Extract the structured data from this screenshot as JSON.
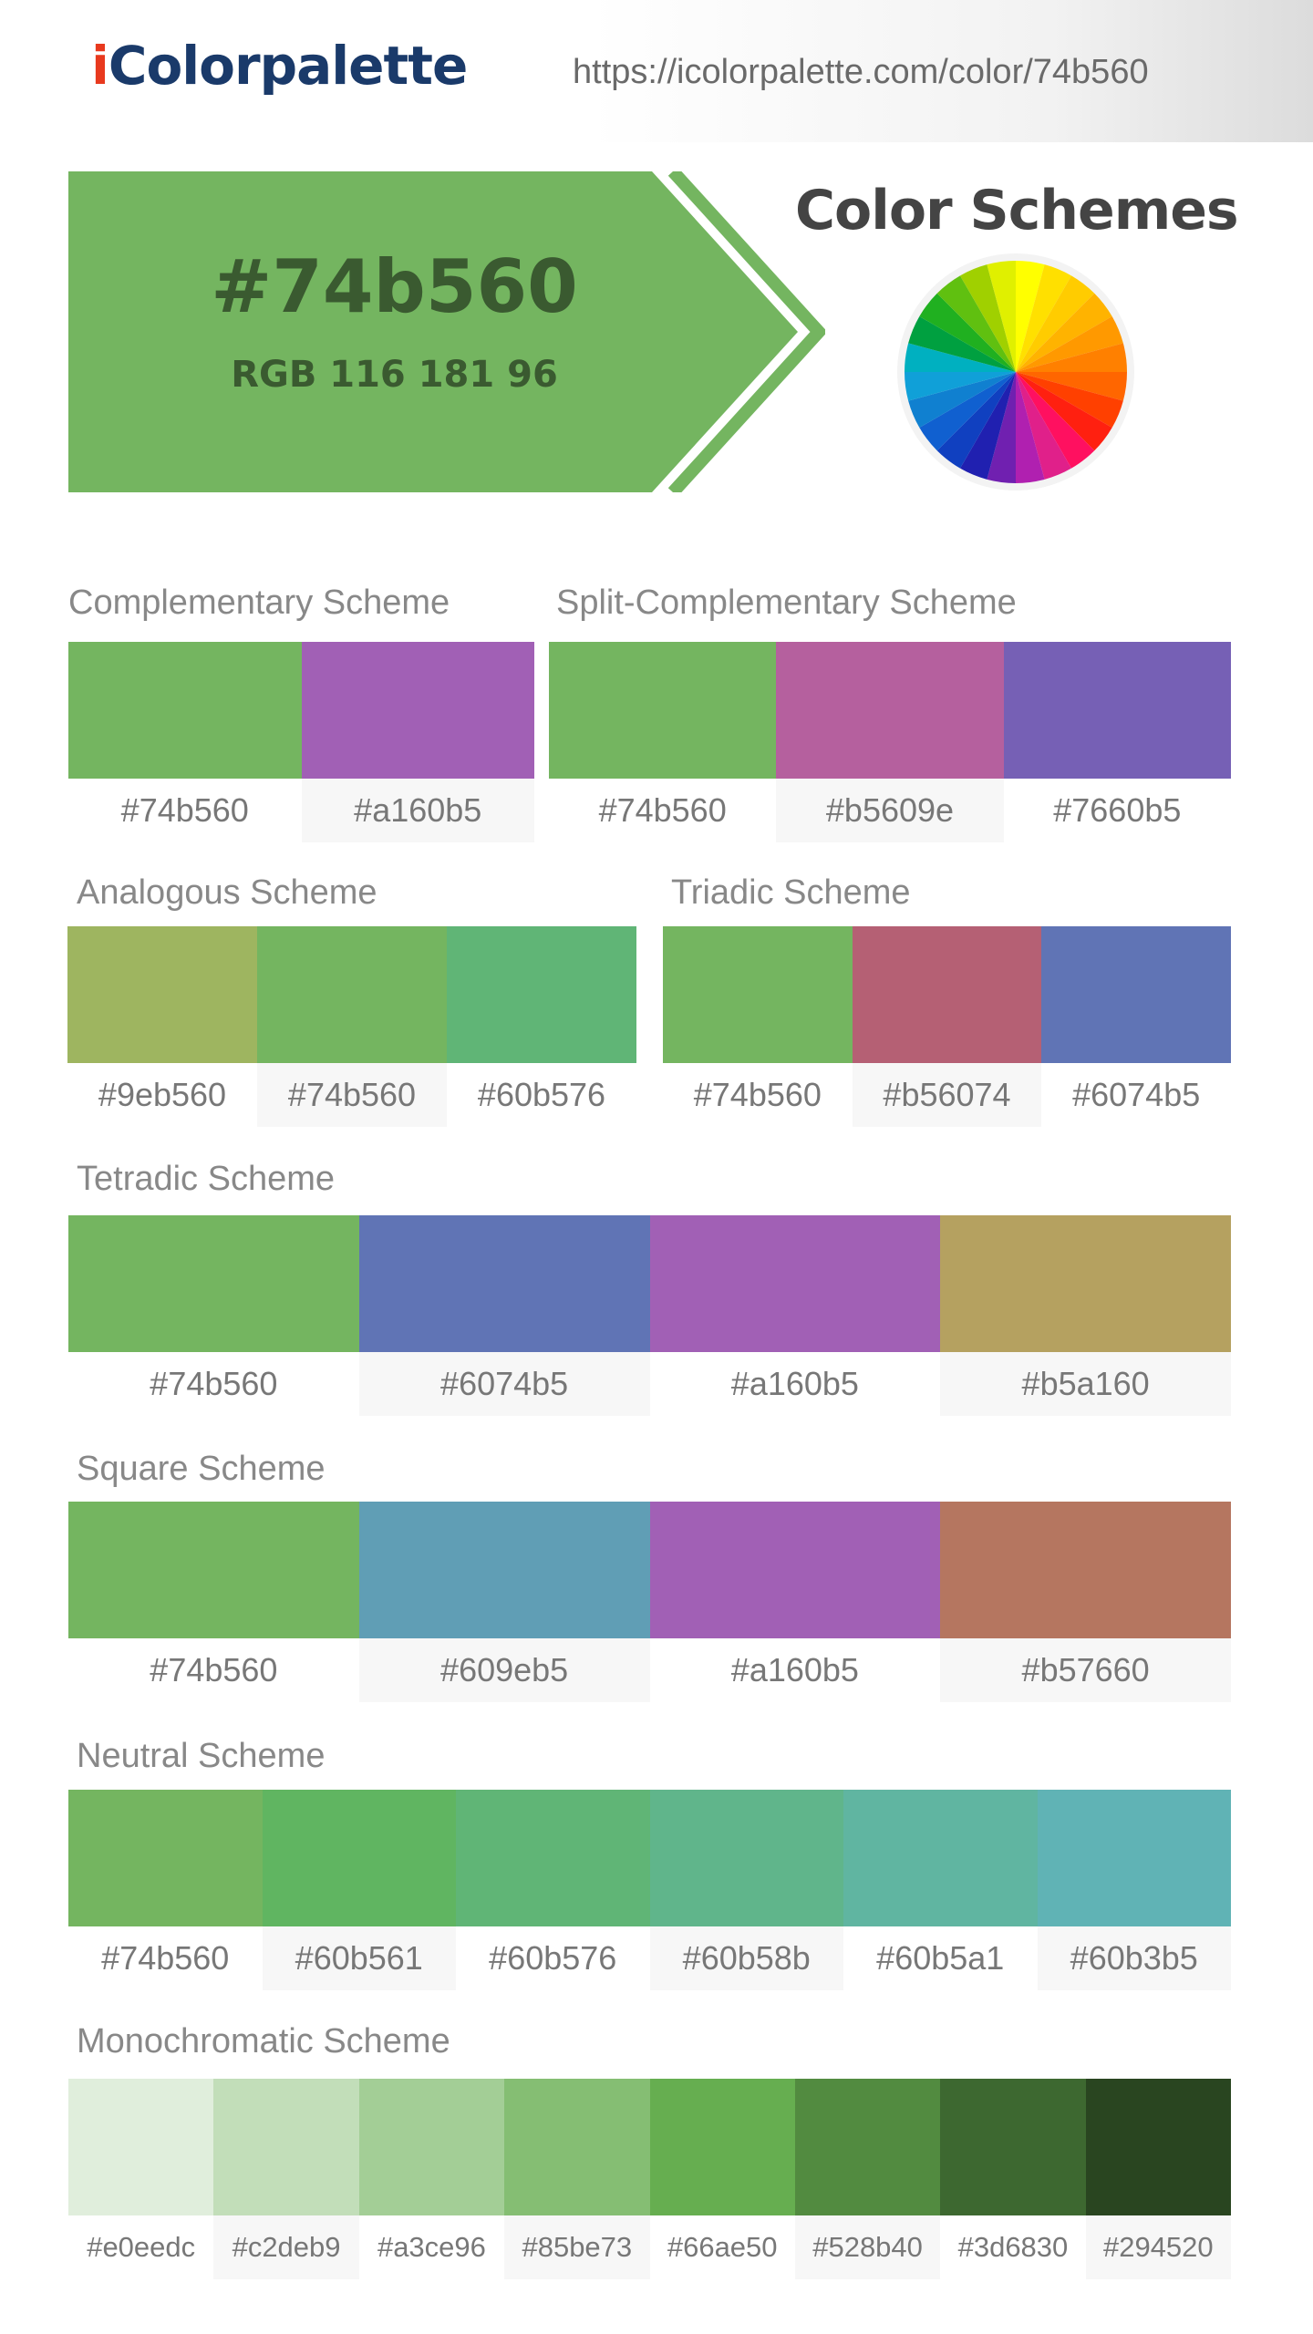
{
  "header": {
    "logo_i": "i",
    "logo_rest": "Colorpalette",
    "url": "https://icolorpalette.com/color/74b560"
  },
  "hero": {
    "hex": "#74b560",
    "rgb": "RGB 116 181 96",
    "color": "#74b560",
    "text_color": "#3a5a30"
  },
  "color_schemes_title": "Color Schemes",
  "schemes": {
    "complementary": {
      "title": "Complementary Scheme",
      "colors": [
        "#74b560",
        "#a160b5"
      ]
    },
    "split_complementary": {
      "title": "Split-Complementary Scheme",
      "colors": [
        "#74b560",
        "#b5609e",
        "#7660b5"
      ]
    },
    "analogous": {
      "title": "Analogous Scheme",
      "colors": [
        "#9eb560",
        "#74b560",
        "#60b576"
      ]
    },
    "triadic": {
      "title": "Triadic Scheme",
      "colors": [
        "#74b560",
        "#b56074",
        "#6074b5"
      ]
    },
    "tetradic": {
      "title": "Tetradic Scheme",
      "colors": [
        "#74b560",
        "#6074b5",
        "#a160b5",
        "#b5a160"
      ]
    },
    "square": {
      "title": "Square Scheme",
      "colors": [
        "#74b560",
        "#609eb5",
        "#a160b5",
        "#b57660"
      ]
    },
    "neutral": {
      "title": "Neutral Scheme",
      "colors": [
        "#74b560",
        "#60b561",
        "#60b576",
        "#60b58b",
        "#60b5a1",
        "#60b3b5"
      ]
    },
    "monochromatic": {
      "title": "Monochromatic Scheme",
      "colors": [
        "#e0eedc",
        "#c2deb9",
        "#a3ce96",
        "#85be73",
        "#66ae50",
        "#528b40",
        "#3d6830",
        "#294520"
      ]
    }
  },
  "wheel_colors": [
    "#ffff00",
    "#ffe000",
    "#ffcc00",
    "#ffb300",
    "#ff9900",
    "#ff8000",
    "#ff6600",
    "#ff4000",
    "#ff2010",
    "#ff1060",
    "#e0208a",
    "#b020b0",
    "#7020b0",
    "#2020b0",
    "#1040c0",
    "#1060d0",
    "#1080d0",
    "#10a0d8",
    "#00b0c0",
    "#00a040",
    "#20b020",
    "#60c010",
    "#a0d000",
    "#e0f000"
  ]
}
